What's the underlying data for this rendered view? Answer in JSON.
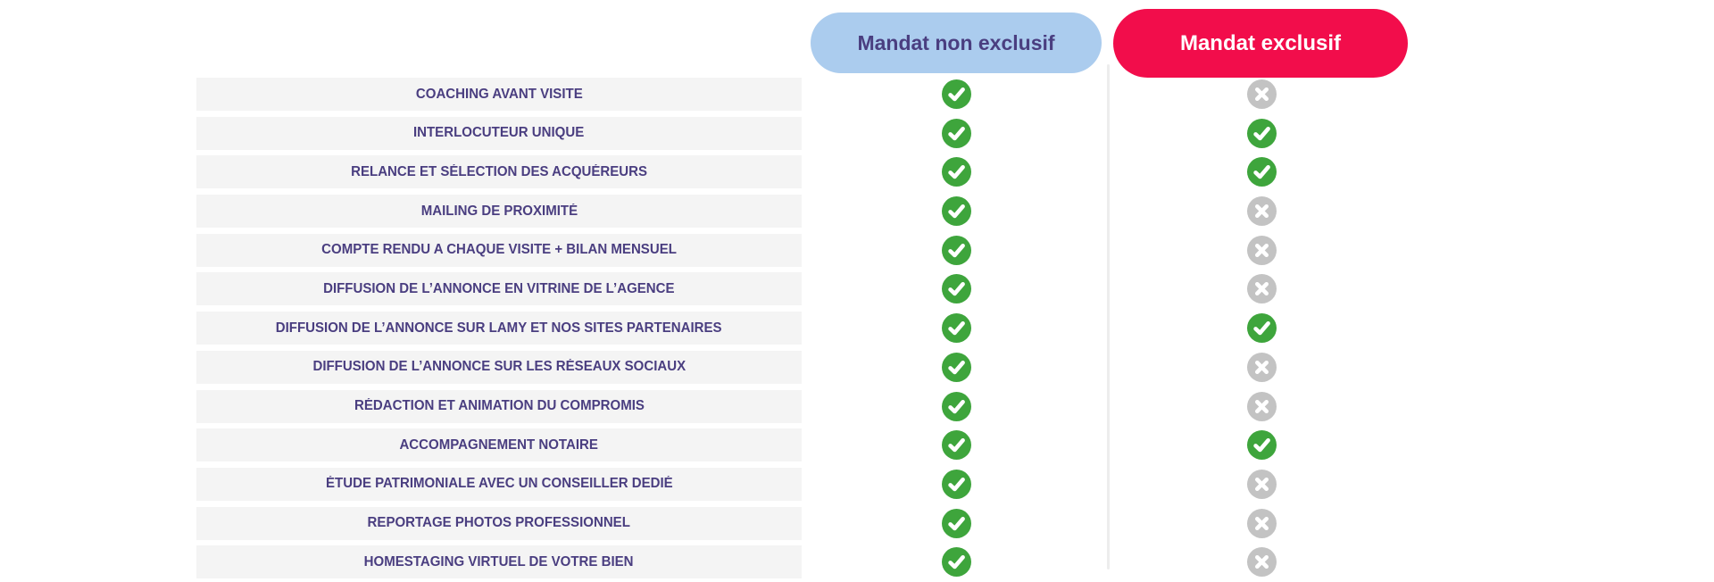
{
  "header": {
    "columns": [
      {
        "id": "non_exclusif",
        "label": "Mandat non exclusif"
      },
      {
        "id": "exclusif",
        "label": "Mandat exclusif"
      }
    ]
  },
  "rows": [
    {
      "label": "COACHING AVANT VISITE",
      "non_exclusif": true,
      "exclusif": false
    },
    {
      "label": "INTERLOCUTEUR UNIQUE",
      "non_exclusif": true,
      "exclusif": true
    },
    {
      "label": "RELANCE ET SÉLECTION DES ACQUÉREURS",
      "non_exclusif": true,
      "exclusif": true
    },
    {
      "label": "MAILING DE PROXIMITÉ",
      "non_exclusif": true,
      "exclusif": false
    },
    {
      "label": "COMPTE RENDU A CHAQUE VISITE + BILAN MENSUEL",
      "non_exclusif": true,
      "exclusif": false
    },
    {
      "label": "DIFFUSION DE L’ANNONCE EN VITRINE DE L’AGENCE",
      "non_exclusif": true,
      "exclusif": false
    },
    {
      "label": "DIFFUSION DE L’ANNONCE SUR LAMY ET NOS SITES PARTENAIRES",
      "non_exclusif": true,
      "exclusif": true
    },
    {
      "label": "DIFFUSION DE L’ANNONCE SUR LES RÉSEAUX SOCIAUX",
      "non_exclusif": true,
      "exclusif": false
    },
    {
      "label": "RÉDACTION ET ANIMATION DU COMPROMIS",
      "non_exclusif": true,
      "exclusif": false
    },
    {
      "label": "ACCOMPAGNEMENT NOTAIRE",
      "non_exclusif": true,
      "exclusif": true
    },
    {
      "label": "ÉTUDE PATRIMONIALE AVEC UN CONSEILLER DEDIÉ",
      "non_exclusif": true,
      "exclusif": false
    },
    {
      "label": "REPORTAGE PHOTOS PROFESSIONNEL",
      "non_exclusif": true,
      "exclusif": false
    },
    {
      "label": "HOMESTAGING VIRTUEL DE VOTRE BIEN",
      "non_exclusif": true,
      "exclusif": false
    }
  ],
  "icons": {
    "available": "check-icon",
    "unavailable": "cross-icon"
  },
  "colors": {
    "non_exclusif_pill_bg": "#abccee",
    "pill_text_purple": "#4a3e80",
    "exclusif_pill_bg": "#f20d4b",
    "exclusif_pill_text": "#ffffff",
    "row_bg": "#f4f4f4",
    "row_text": "#4a3e80",
    "check_green": "#3ea53c",
    "cross_gray": "#c3c3c3",
    "divider": "#ededed"
  }
}
